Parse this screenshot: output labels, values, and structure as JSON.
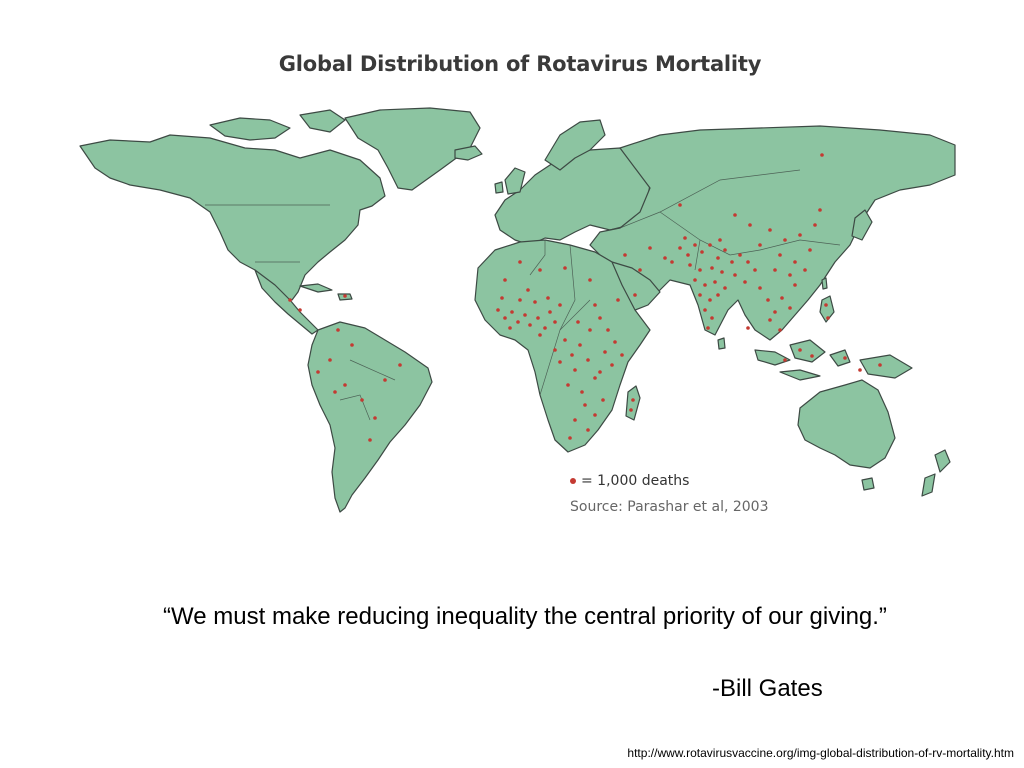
{
  "slide": {
    "map_title": "Global Distribution of Rotavirus Mortality",
    "legend_label": "= 1,000 deaths",
    "source": "Source: Parashar et al, 2003",
    "quote": "“We must make reducing inequality the central priority of our giving.”",
    "attribution": "-Bill Gates",
    "footer_url": "http://www.rotavirusvaccine.org/img-global-distribution-of-rv-mortality.htm"
  },
  "colors": {
    "land": "#8cc4a1",
    "border": "#3d4a44",
    "dot": "#c43a32",
    "background": "#ffffff"
  }
}
